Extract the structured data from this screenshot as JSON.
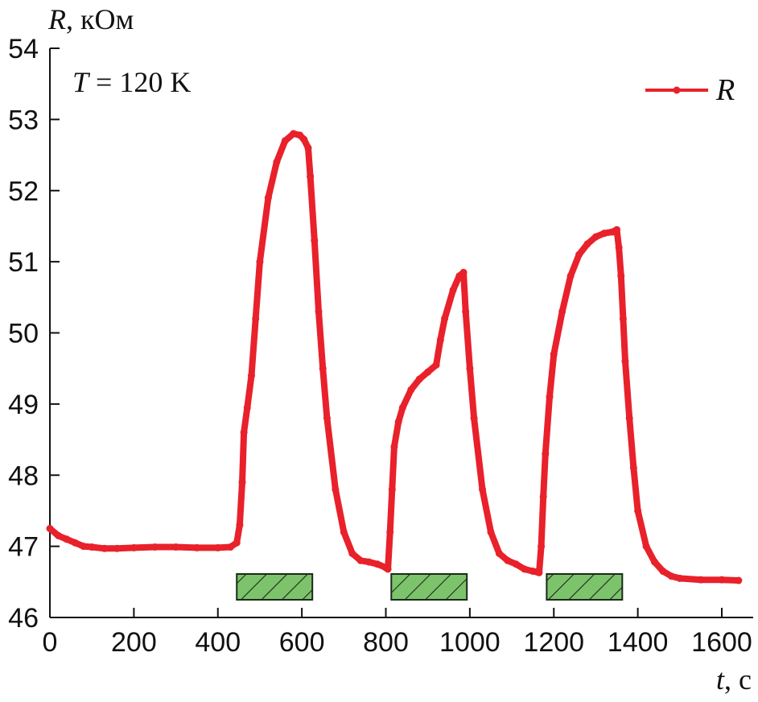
{
  "chart_data": {
    "type": "line",
    "xlabel": {
      "var": "t",
      "unit": ", с"
    },
    "ylabel": {
      "var": "R",
      "unit": ", кОм"
    },
    "xlim": [
      0,
      1680
    ],
    "ylim": [
      46,
      54
    ],
    "xticks": [
      "0",
      "200",
      "400",
      "600",
      "800",
      "1000",
      "1200",
      "1400",
      "1600"
    ],
    "yticks": [
      "46",
      "47",
      "48",
      "49",
      "50",
      "51",
      "52",
      "53",
      "54"
    ],
    "annotation": {
      "var": "T",
      "text": " = 120 K"
    },
    "legend": {
      "position": "top-right",
      "entries": [
        "R"
      ]
    },
    "grid": false,
    "colors": {
      "series": "#e8212b",
      "pulse_fill": "#7dc36b",
      "pulse_hatch": "#1a2a1a"
    },
    "series": [
      {
        "name": "R",
        "x": [
          0,
          20,
          40,
          60,
          80,
          100,
          130,
          160,
          200,
          250,
          300,
          350,
          400,
          430,
          445,
          452,
          458,
          462,
          470,
          480,
          490,
          500,
          520,
          540,
          560,
          580,
          595,
          605,
          615,
          620,
          630,
          640,
          650,
          660,
          680,
          700,
          720,
          740,
          760,
          780,
          800,
          805,
          810,
          815,
          820,
          830,
          840,
          860,
          880,
          900,
          920,
          930,
          940,
          960,
          975,
          985,
          990,
          1000,
          1010,
          1030,
          1050,
          1070,
          1090,
          1110,
          1130,
          1150,
          1160,
          1165,
          1170,
          1175,
          1180,
          1190,
          1200,
          1220,
          1240,
          1260,
          1280,
          1300,
          1320,
          1340,
          1350,
          1355,
          1360,
          1365,
          1370,
          1380,
          1390,
          1400,
          1420,
          1440,
          1460,
          1480,
          1500,
          1550,
          1600,
          1640
        ],
        "values": [
          47.25,
          47.15,
          47.1,
          47.05,
          47.0,
          46.99,
          46.97,
          46.97,
          46.98,
          46.99,
          46.99,
          46.98,
          46.98,
          46.99,
          47.05,
          47.3,
          47.9,
          48.6,
          48.95,
          49.4,
          50.2,
          51.0,
          51.9,
          52.4,
          52.7,
          52.8,
          52.78,
          52.72,
          52.6,
          52.2,
          51.3,
          50.3,
          49.5,
          48.8,
          47.8,
          47.2,
          46.9,
          46.8,
          46.78,
          46.75,
          46.7,
          46.68,
          47.2,
          47.8,
          48.4,
          48.75,
          48.95,
          49.2,
          49.35,
          49.45,
          49.55,
          49.9,
          50.2,
          50.6,
          50.8,
          50.85,
          50.3,
          49.5,
          48.8,
          47.8,
          47.2,
          46.9,
          46.8,
          46.75,
          46.68,
          46.65,
          46.64,
          46.63,
          47.0,
          47.7,
          48.3,
          49.1,
          49.7,
          50.3,
          50.8,
          51.1,
          51.25,
          51.35,
          51.4,
          51.42,
          51.45,
          51.2,
          50.8,
          50.2,
          49.6,
          48.8,
          48.1,
          47.5,
          47.0,
          46.78,
          46.65,
          46.58,
          46.55,
          46.53,
          46.53,
          46.52
        ]
      }
    ],
    "pulses": [
      {
        "start": 445,
        "end": 625
      },
      {
        "start": 813,
        "end": 993
      },
      {
        "start": 1183,
        "end": 1363
      }
    ]
  }
}
